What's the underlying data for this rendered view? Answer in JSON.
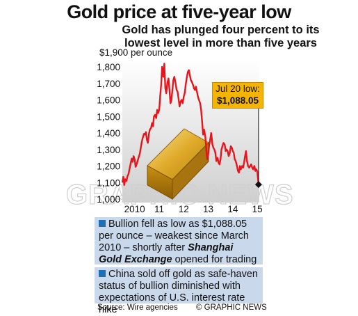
{
  "header": {
    "title": "Gold price at five-year low",
    "subtitle_line1": "Gold has plunged four percent to its",
    "subtitle_line2": "lowest level in more than five years"
  },
  "callout": {
    "label": "Jul 20 low:",
    "value": "$1,088.05"
  },
  "panels": [
    {
      "lines": [
        "Bullion fell as low as $1,088.05",
        "per ounce – weakest since March",
        "2010 – shortly after ",
        "Shanghai",
        "Gold Exchange",
        " opened for trading"
      ]
    },
    {
      "lines": [
        "China sold off gold as safe-haven",
        "status of bullion diminished with",
        "expectations of U.S. interest rate hike"
      ]
    }
  ],
  "footer": {
    "source": "Source: Wire agencies",
    "credit": "© GRAPHIC NEWS"
  },
  "watermark": "GRAPHIC NEWS",
  "colors": {
    "line": "#e8141c",
    "callout": "#f5b400",
    "panel": "#c9d8ea",
    "bullet": "#1f6fb5",
    "gold_bar": "#d9a21b"
  },
  "chart_data": {
    "type": "line",
    "title": "Gold price at five-year low",
    "ylabel": "$1,900 per ounce",
    "xlabel": "",
    "ylim": [
      1000,
      1900
    ],
    "yticks": [
      1000,
      1100,
      1200,
      1300,
      1400,
      1500,
      1600,
      1700,
      1800
    ],
    "ytick_labels": [
      "1,000",
      "1,100",
      "1,200",
      "1,300",
      "1,400",
      "1,500",
      "1,600",
      "1,700",
      "1,800"
    ],
    "xlim": [
      2010.0,
      2015.58
    ],
    "xticks": [
      2010,
      2011,
      2012,
      2013,
      2014,
      2015
    ],
    "xtick_labels": [
      "2010",
      "11",
      "12",
      "13",
      "14",
      "15"
    ],
    "grid": false,
    "series": [
      {
        "x": [
          2010.0,
          2010.04,
          2010.08,
          2010.12,
          2010.17,
          2010.21,
          2010.25,
          2010.29,
          2010.33,
          2010.38,
          2010.42,
          2010.46,
          2010.5,
          2010.54,
          2010.58,
          2010.62,
          2010.67,
          2010.71,
          2010.75,
          2010.79,
          2010.83,
          2010.88,
          2010.92,
          2010.96,
          2011.0,
          2011.04,
          2011.08,
          2011.12,
          2011.17,
          2011.21,
          2011.25,
          2011.29,
          2011.33,
          2011.38,
          2011.42,
          2011.46,
          2011.5,
          2011.54,
          2011.58,
          2011.62,
          2011.67,
          2011.71,
          2011.75,
          2011.79,
          2011.83,
          2011.88,
          2011.92,
          2011.96,
          2012.0,
          2012.04,
          2012.08,
          2012.12,
          2012.17,
          2012.21,
          2012.25,
          2012.29,
          2012.33,
          2012.38,
          2012.42,
          2012.46,
          2012.5,
          2012.54,
          2012.58,
          2012.62,
          2012.67,
          2012.71,
          2012.75,
          2012.79,
          2012.83,
          2012.88,
          2012.92,
          2012.96,
          2013.0,
          2013.04,
          2013.08,
          2013.12,
          2013.17,
          2013.21,
          2013.25,
          2013.29,
          2013.33,
          2013.38,
          2013.42,
          2013.46,
          2013.5,
          2013.54,
          2013.58,
          2013.62,
          2013.67,
          2013.71,
          2013.75,
          2013.79,
          2013.83,
          2013.88,
          2013.92,
          2013.96,
          2014.0,
          2014.04,
          2014.08,
          2014.12,
          2014.17,
          2014.21,
          2014.25,
          2014.29,
          2014.33,
          2014.38,
          2014.42,
          2014.46,
          2014.5,
          2014.54,
          2014.58,
          2014.62,
          2014.67,
          2014.71,
          2014.75,
          2014.79,
          2014.83,
          2014.88,
          2014.92,
          2014.96,
          2015.0,
          2015.04,
          2015.08,
          2015.12,
          2015.17,
          2015.21,
          2015.25,
          2015.29,
          2015.33,
          2015.38,
          2015.42,
          2015.46,
          2015.5,
          2015.55
        ],
        "y": [
          1100,
          1135,
          1085,
          1120,
          1110,
          1140,
          1150,
          1180,
          1210,
          1245,
          1225,
          1260,
          1240,
          1195,
          1210,
          1230,
          1255,
          1275,
          1310,
          1345,
          1370,
          1395,
          1390,
          1405,
          1360,
          1340,
          1390,
          1420,
          1430,
          1460,
          1440,
          1500,
          1510,
          1490,
          1540,
          1520,
          1540,
          1620,
          1690,
          1800,
          1740,
          1820,
          1670,
          1640,
          1700,
          1730,
          1660,
          1580,
          1600,
          1660,
          1720,
          1740,
          1700,
          1660,
          1650,
          1610,
          1560,
          1590,
          1600,
          1580,
          1620,
          1640,
          1690,
          1730,
          1770,
          1780,
          1750,
          1720,
          1710,
          1690,
          1670,
          1660,
          1680,
          1650,
          1620,
          1600,
          1580,
          1540,
          1470,
          1390,
          1420,
          1380,
          1300,
          1240,
          1270,
          1330,
          1360,
          1400,
          1330,
          1310,
          1300,
          1280,
          1230,
          1250,
          1220,
          1210,
          1240,
          1300,
          1320,
          1340,
          1330,
          1290,
          1300,
          1290,
          1260,
          1280,
          1320,
          1310,
          1290,
          1280,
          1240,
          1230,
          1200,
          1170,
          1160,
          1200,
          1180,
          1200,
          1190,
          1220,
          1260,
          1290,
          1230,
          1200,
          1190,
          1200,
          1210,
          1190,
          1180,
          1200,
          1170,
          1180,
          1165,
          1088
        ]
      }
    ],
    "annotations": [
      {
        "label": "Jul 20 low:",
        "value": "$1,088.05",
        "x": 2015.55,
        "y": 1088.05
      }
    ]
  }
}
